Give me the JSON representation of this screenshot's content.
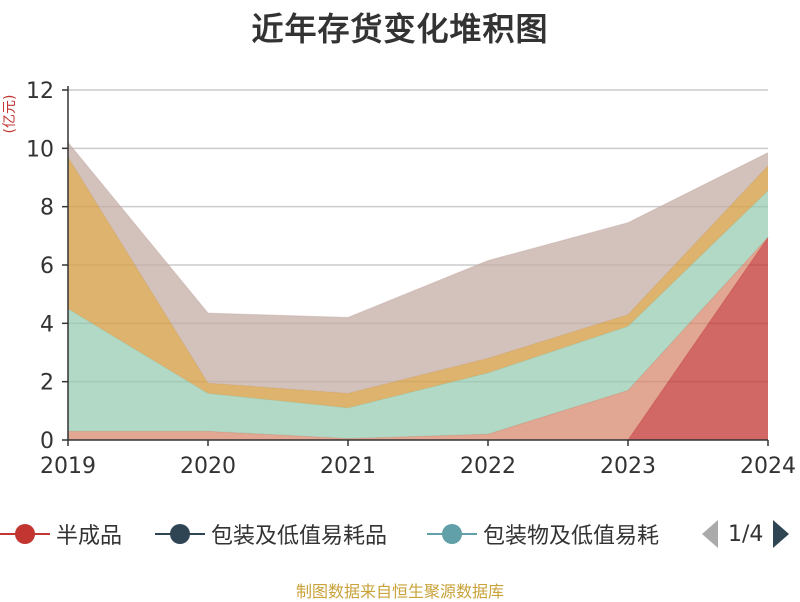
{
  "chart_data": {
    "type": "area",
    "stacked": true,
    "title": "近年存货变化堆积图",
    "ylabel": "(亿元)",
    "xlabel": "",
    "categories": [
      "2019",
      "2020",
      "2021",
      "2022",
      "2023",
      "2024"
    ],
    "ylim": [
      0,
      12
    ],
    "yticks": [
      0,
      2,
      4,
      6,
      8,
      10,
      12
    ],
    "grid": true,
    "legend_position": "bottom",
    "series": [
      {
        "name": "半成品",
        "color": "#c23531",
        "values": [
          0,
          0,
          0,
          0,
          0,
          6.95
        ]
      },
      {
        "name": "包装及低值易耗品",
        "color": "#2f4554",
        "values": [
          0,
          0,
          0,
          0,
          0,
          0
        ]
      },
      {
        "name": "包装物及低值易耗品",
        "color": "#61a0a8",
        "values": [
          0,
          0,
          0,
          0,
          0,
          0
        ]
      },
      {
        "series_index": 4,
        "color": "#d48265",
        "values": [
          0.3,
          0.3,
          0.05,
          0.2,
          1.7,
          0
        ]
      },
      {
        "series_index": 5,
        "color": "#91c7ae",
        "values": [
          4.2,
          1.3,
          1.05,
          2.1,
          2.2,
          1.6
        ]
      },
      {
        "series_index": 6,
        "color": "#d4a04a",
        "values": [
          5.2,
          0.35,
          0.5,
          0.5,
          0.4,
          0.85
        ]
      },
      {
        "series_index": 7,
        "color": "#c4aca5",
        "values": [
          0.5,
          2.4,
          2.6,
          3.35,
          3.15,
          0.45
        ]
      }
    ]
  },
  "legend": {
    "items": [
      "半成品",
      "包装及低值易耗品",
      "包装物及低值易耗"
    ],
    "page_indicator": "1/4"
  },
  "footer": {
    "source": "制图数据来自恒生聚源数据库"
  }
}
